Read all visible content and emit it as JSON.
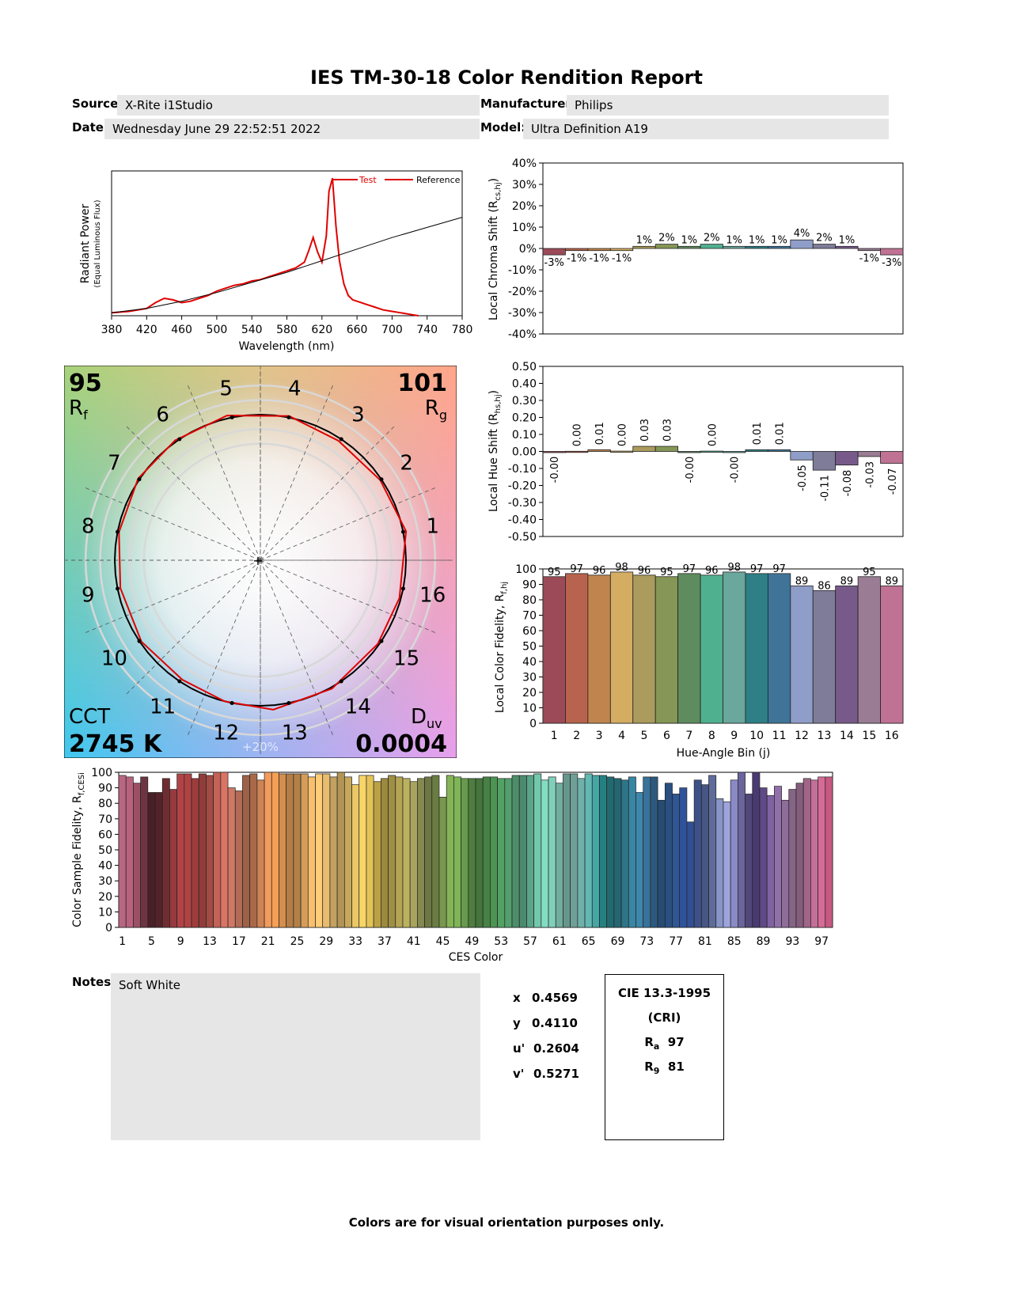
{
  "report": {
    "title": "IES TM-30-18 Color Rendition Report",
    "source_label": "Source:",
    "source": "X-Rite i1Studio",
    "manufacturer_label": "Manufacturer:",
    "manufacturer": "Philips",
    "date_label": "Date:",
    "date": "Wednesday June 29 22:52:51 2022",
    "model_label": "Model:",
    "model": "Ultra Definition A19",
    "notes_label": "Notes:",
    "notes": "Soft White",
    "footer": "Colors are for visual orientation purposes only."
  },
  "colorimetry": {
    "x_label": "x",
    "x": "0.4569",
    "y_label": "y",
    "y": "0.4110",
    "u_label": "u'",
    "u": "0.2604",
    "v_label": "v'",
    "v": "0.5271"
  },
  "cri": {
    "title": "CIE 13.3-1995",
    "subtitle": "(CRI)",
    "ra_label": "R",
    "ra_sub": "a",
    "ra": "97",
    "r9_label": "R",
    "r9_sub": "9",
    "r9": "81"
  },
  "chart_data": [
    {
      "type": "line",
      "id": "spectrum",
      "xlabel": "Wavelength (nm)",
      "ylabel": "Radiant Power",
      "ylabel2": "(Equal Luminous Flux)",
      "xlim": [
        380,
        780
      ],
      "xticks": [
        "380",
        "420",
        "460",
        "500",
        "540",
        "580",
        "620",
        "660",
        "700",
        "740",
        "780"
      ],
      "series": [
        {
          "name": "Test",
          "color": "#e00000",
          "x": [
            380,
            400,
            420,
            430,
            440,
            450,
            460,
            470,
            480,
            490,
            500,
            510,
            520,
            530,
            540,
            550,
            560,
            570,
            580,
            590,
            600,
            605,
            610,
            615,
            620,
            625,
            628,
            632,
            636,
            640,
            645,
            650,
            655,
            660,
            670,
            680,
            690,
            700,
            710,
            720,
            730
          ],
          "y": [
            0.02,
            0.03,
            0.05,
            0.09,
            0.12,
            0.11,
            0.09,
            0.1,
            0.12,
            0.14,
            0.17,
            0.19,
            0.21,
            0.22,
            0.24,
            0.25,
            0.27,
            0.29,
            0.31,
            0.33,
            0.37,
            0.45,
            0.54,
            0.44,
            0.37,
            0.55,
            0.86,
            0.95,
            0.62,
            0.38,
            0.22,
            0.14,
            0.11,
            0.1,
            0.08,
            0.06,
            0.04,
            0.03,
            0.02,
            0.01,
            0.0
          ]
        },
        {
          "name": "Reference",
          "color": "#000000",
          "x": [
            380,
            420,
            460,
            500,
            540,
            580,
            620,
            660,
            700,
            740,
            780
          ],
          "y": [
            0.02,
            0.05,
            0.1,
            0.16,
            0.23,
            0.3,
            0.38,
            0.46,
            0.54,
            0.61,
            0.68
          ]
        }
      ],
      "legend": "top-right"
    },
    {
      "type": "bar",
      "id": "chroma-shift",
      "ylabel": "Local Chroma Shift (R",
      "ylabel_sub": "cs,hj",
      "ylabel_end": ")",
      "ylim": [
        -40,
        40
      ],
      "yticks": [
        "40%",
        "30%",
        "20%",
        "10%",
        "0%",
        "-10%",
        "-20%",
        "-30%",
        "-40%"
      ],
      "categories": [
        "1",
        "2",
        "3",
        "4",
        "5",
        "6",
        "7",
        "8",
        "9",
        "10",
        "11",
        "12",
        "13",
        "14",
        "15",
        "16"
      ],
      "values": [
        -3,
        -1,
        -1,
        -1,
        1,
        2,
        1,
        2,
        1,
        1,
        1,
        4,
        2,
        1,
        -1,
        -3
      ],
      "labels": [
        "-3%",
        "-1%",
        "-1%",
        "-1%",
        "1%",
        "2%",
        "1%",
        "2%",
        "1%",
        "1%",
        "1%",
        "4%",
        "2%",
        "1%",
        "-1%",
        "-3%"
      ]
    },
    {
      "type": "bar",
      "id": "hue-shift",
      "ylabel": "Local Hue Shift (R",
      "ylabel_sub": "hs,hj",
      "ylabel_end": ")",
      "ylim": [
        -0.5,
        0.5
      ],
      "yticks": [
        "0.50",
        "0.40",
        "0.30",
        "0.20",
        "0.10",
        "0.00",
        "-0.10",
        "-0.20",
        "-0.30",
        "-0.40",
        "-0.50"
      ],
      "categories": [
        "1",
        "2",
        "3",
        "4",
        "5",
        "6",
        "7",
        "8",
        "9",
        "10",
        "11",
        "12",
        "13",
        "14",
        "15",
        "16"
      ],
      "values": [
        -0.001,
        0.001,
        0.01,
        0.002,
        0.03,
        0.03,
        -0.001,
        0.002,
        -0.001,
        0.01,
        0.01,
        -0.05,
        -0.11,
        -0.08,
        -0.03,
        -0.07
      ],
      "labels": [
        "-0.00",
        "0.00",
        "0.01",
        "0.00",
        "0.03",
        "0.03",
        "-0.00",
        "0.00",
        "-0.00",
        "0.01",
        "0.01",
        "-0.05",
        "-0.11",
        "-0.08",
        "-0.03",
        "-0.07"
      ]
    },
    {
      "type": "bar",
      "id": "local-fidelity",
      "ylabel": "Local Color Fidelity, R",
      "ylabel_sub": "f,hj",
      "xlabel": "Hue-Angle Bin (j)",
      "ylim": [
        0,
        100
      ],
      "yticks": [
        "100",
        "90",
        "80",
        "70",
        "60",
        "50",
        "40",
        "30",
        "20",
        "10",
        "0"
      ],
      "categories": [
        "1",
        "2",
        "3",
        "4",
        "5",
        "6",
        "7",
        "8",
        "9",
        "10",
        "11",
        "12",
        "13",
        "14",
        "15",
        "16"
      ],
      "values": [
        95,
        97,
        96,
        98,
        96,
        95,
        97,
        96,
        98,
        97,
        97,
        89,
        86,
        89,
        95,
        89
      ]
    },
    {
      "type": "bar",
      "id": "ces-fidelity",
      "ylabel": "Color Sample Fidelity, R",
      "ylabel_sub": "f,CESi",
      "xlabel": "CES Color",
      "ylim": [
        0,
        100
      ],
      "yticks": [
        "100",
        "90",
        "80",
        "70",
        "60",
        "50",
        "40",
        "30",
        "20",
        "10",
        "0"
      ],
      "xticks": [
        "1",
        "5",
        "9",
        "13",
        "17",
        "21",
        "25",
        "29",
        "33",
        "37",
        "41",
        "45",
        "49",
        "53",
        "57",
        "61",
        "65",
        "69",
        "73",
        "77",
        "81",
        "85",
        "89",
        "93",
        "97"
      ],
      "values": [
        98,
        97,
        93,
        97,
        87,
        87,
        96,
        89,
        99,
        99,
        96,
        99,
        98,
        100,
        100,
        90,
        88,
        98,
        99,
        95,
        100,
        100,
        99,
        99,
        99,
        99,
        97,
        99,
        99,
        97,
        100,
        97,
        92,
        98,
        98,
        94,
        96,
        98,
        97,
        96,
        94,
        96,
        97,
        98,
        84,
        98,
        97,
        96,
        96,
        96,
        97,
        97,
        96,
        96,
        98,
        98,
        98,
        99,
        95,
        97,
        93,
        99,
        99,
        96,
        99,
        98,
        98,
        97,
        96,
        95,
        97,
        87,
        97,
        97,
        82,
        93,
        86,
        90,
        68,
        95,
        92,
        98,
        83,
        81,
        95,
        100,
        86,
        100,
        90,
        85,
        91,
        82,
        89,
        93,
        96,
        95,
        97,
        97
      ]
    },
    {
      "type": "radar",
      "id": "cvg",
      "rf_value": "95",
      "rf_label": "R",
      "rf_sub": "f",
      "rg_value": "101",
      "rg_label": "R",
      "rg_sub": "g",
      "cct_label": "CCT",
      "cct_value": "2745 K",
      "duv_label": "D",
      "duv_sub": "uv",
      "duv_value": "0.0004",
      "ring_label": "+20%",
      "bins": [
        "1",
        "2",
        "3",
        "4",
        "5",
        "6",
        "7",
        "8",
        "9",
        "10",
        "11",
        "12",
        "13",
        "14",
        "15",
        "16"
      ],
      "test_radius": [
        1.02,
        0.99,
        0.98,
        1.01,
        1.02,
        1.01,
        1.01,
        0.99,
        0.98,
        0.99,
        0.98,
        1.0,
        1.03,
        1.01,
        0.99,
        0.99
      ],
      "test_angle_shift_deg": [
        0,
        0,
        0.6,
        0,
        1.7,
        1.7,
        0,
        0,
        0,
        0.6,
        0.6,
        -2.9,
        -6.3,
        -4.6,
        -1.7,
        -4.0
      ]
    }
  ]
}
